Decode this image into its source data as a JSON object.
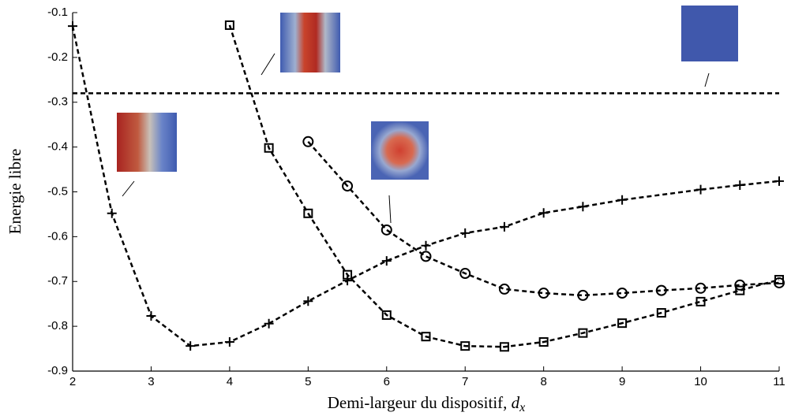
{
  "chart_data": {
    "type": "line",
    "ylabel": "Energie libre",
    "xlabel": "Demi-largeur du dispositif,",
    "xlabel_var": "d",
    "xlabel_sub": "x",
    "xlim": [
      2,
      11
    ],
    "xticks": [
      2,
      3,
      4,
      5,
      6,
      7,
      8,
      9,
      10,
      11
    ],
    "ylim": [
      -0.9,
      -0.1
    ],
    "yticks": [
      -0.9,
      -0.8,
      -0.7,
      -0.6,
      -0.5,
      -0.4,
      -0.3,
      -0.2,
      -0.1
    ],
    "hline": -0.28,
    "series": [
      {
        "marker": "plus",
        "color": "#000000",
        "x": [
          2,
          2.5,
          3,
          3.5,
          4,
          4.5,
          5,
          5.5,
          6,
          6.5,
          7,
          7.5,
          8,
          8.5,
          9,
          10,
          10.5,
          11
        ],
        "values": [
          -0.13,
          -0.548,
          -0.777,
          -0.844,
          -0.835,
          -0.794,
          -0.744,
          -0.698,
          -0.654,
          -0.62,
          -0.592,
          -0.578,
          -0.547,
          -0.533,
          -0.518,
          -0.495,
          -0.485,
          -0.476
        ]
      },
      {
        "marker": "square",
        "color": "#000000",
        "x": [
          4,
          4.5,
          5,
          5.5,
          6,
          6.5,
          7,
          7.5,
          8,
          8.5,
          9,
          9.5,
          10,
          10.5,
          11
        ],
        "values": [
          -0.128,
          -0.402,
          -0.548,
          -0.685,
          -0.775,
          -0.823,
          -0.844,
          -0.846,
          -0.835,
          -0.815,
          -0.793,
          -0.77,
          -0.745,
          -0.72,
          -0.696
        ]
      },
      {
        "marker": "circle",
        "color": "#000000",
        "x": [
          5,
          5.5,
          6,
          6.5,
          7,
          7.5,
          8,
          8.5,
          9,
          9.5,
          10,
          10.5,
          11
        ],
        "values": [
          -0.388,
          -0.487,
          -0.585,
          -0.644,
          -0.682,
          -0.717,
          -0.726,
          -0.731,
          -0.726,
          -0.72,
          -0.715,
          -0.708,
          -0.703
        ]
      }
    ]
  }
}
